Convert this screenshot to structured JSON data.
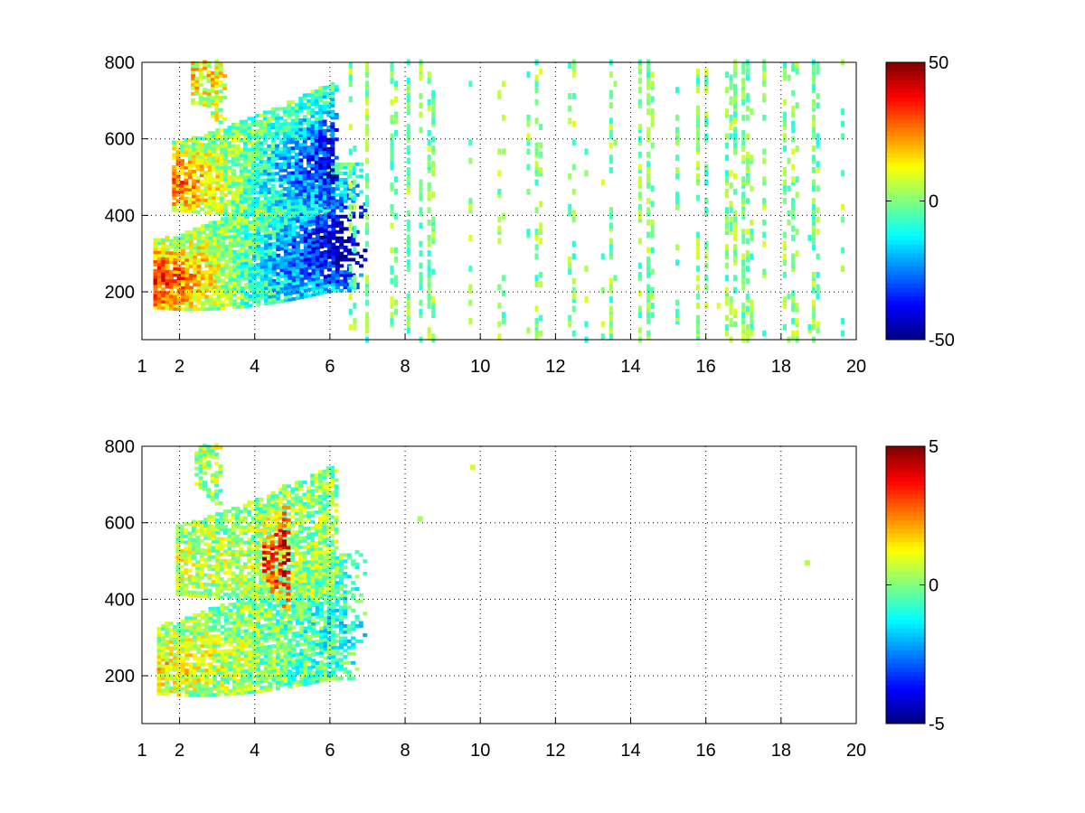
{
  "chart_data": [
    {
      "type": "heatmap",
      "title": "",
      "xlabel": "",
      "ylabel": "",
      "xlim": [
        1,
        20
      ],
      "ylim": [
        75,
        800
      ],
      "xticks": [
        1,
        2,
        4,
        6,
        8,
        10,
        12,
        14,
        16,
        18,
        20
      ],
      "yticks": [
        200,
        400,
        600,
        800
      ],
      "grid": true,
      "grid_style": "dotted",
      "colormap": "jet",
      "colorbar": {
        "min": -50,
        "max": 50,
        "ticks": [
          -50,
          0,
          50
        ]
      },
      "features": [
        {
          "label": "lower band",
          "x_start": 1.5,
          "x_end": 6.0,
          "y_start": 225,
          "y_end": 330,
          "x_min": 1.3,
          "x_max": 7.0,
          "value_at_start": 35,
          "value_at_end": -45,
          "coverage": 0.9
        },
        {
          "label": "upper band",
          "x_start": 2.0,
          "x_end": 6.0,
          "y_start": 480,
          "y_end": 540,
          "x_min": 1.8,
          "x_max": 6.2,
          "value_at_start": 25,
          "value_at_end": -40,
          "coverage": 0.85
        },
        {
          "label": "top blob",
          "x_start": 2.5,
          "x_end": 3.0,
          "y_start": 760,
          "y_end": 770,
          "x_min": 2.3,
          "x_max": 3.2,
          "value_at_start": 15,
          "value_at_end": 12,
          "coverage": 0.75
        }
      ],
      "noise": {
        "x_min": 6.5,
        "x_max": 20,
        "value_range": [
          -10,
          10
        ],
        "column_density": 0.35
      }
    },
    {
      "type": "heatmap",
      "title": "",
      "xlabel": "",
      "ylabel": "",
      "xlim": [
        1,
        20
      ],
      "ylim": [
        75,
        800
      ],
      "xticks": [
        1,
        2,
        4,
        6,
        8,
        10,
        12,
        14,
        16,
        18,
        20
      ],
      "yticks": [
        200,
        400,
        600,
        800
      ],
      "grid": true,
      "grid_style": "dotted",
      "colormap": "jet",
      "colorbar": {
        "min": -5,
        "max": 5,
        "ticks": [
          -5,
          0,
          5
        ]
      },
      "features": [
        {
          "label": "lower band",
          "x_start": 1.5,
          "x_end": 6.0,
          "y_start": 220,
          "y_end": 320,
          "x_min": 1.4,
          "x_max": 7.0,
          "value_at_start": 1.5,
          "value_at_end": -1.0,
          "coverage": 0.85
        },
        {
          "label": "upper band",
          "x_start": 2.0,
          "x_end": 6.0,
          "y_start": 480,
          "y_end": 540,
          "x_min": 1.9,
          "x_max": 6.2,
          "value_at_start": 0.8,
          "value_at_end": 0.2,
          "coverage": 0.75
        },
        {
          "label": "top blob",
          "x_start": 2.5,
          "x_end": 3.0,
          "y_start": 760,
          "y_end": 770,
          "x_min": 2.4,
          "x_max": 3.1,
          "value_at_start": 0.5,
          "value_at_end": 0.5,
          "coverage": 0.6
        },
        {
          "label": "hot spot",
          "x_start": 4.3,
          "x_end": 4.8,
          "y_start": 500,
          "y_end": 500,
          "x_min": 4.2,
          "x_max": 4.9,
          "value_at_start": 4.0,
          "value_at_end": 4.5,
          "coverage": 0.5
        }
      ],
      "points": [
        {
          "x": 18.7,
          "y": 495,
          "value": 0.5
        },
        {
          "x": 9.8,
          "y": 745,
          "value": 0.8
        },
        {
          "x": 8.4,
          "y": 610,
          "value": 0.3
        }
      ]
    }
  ]
}
